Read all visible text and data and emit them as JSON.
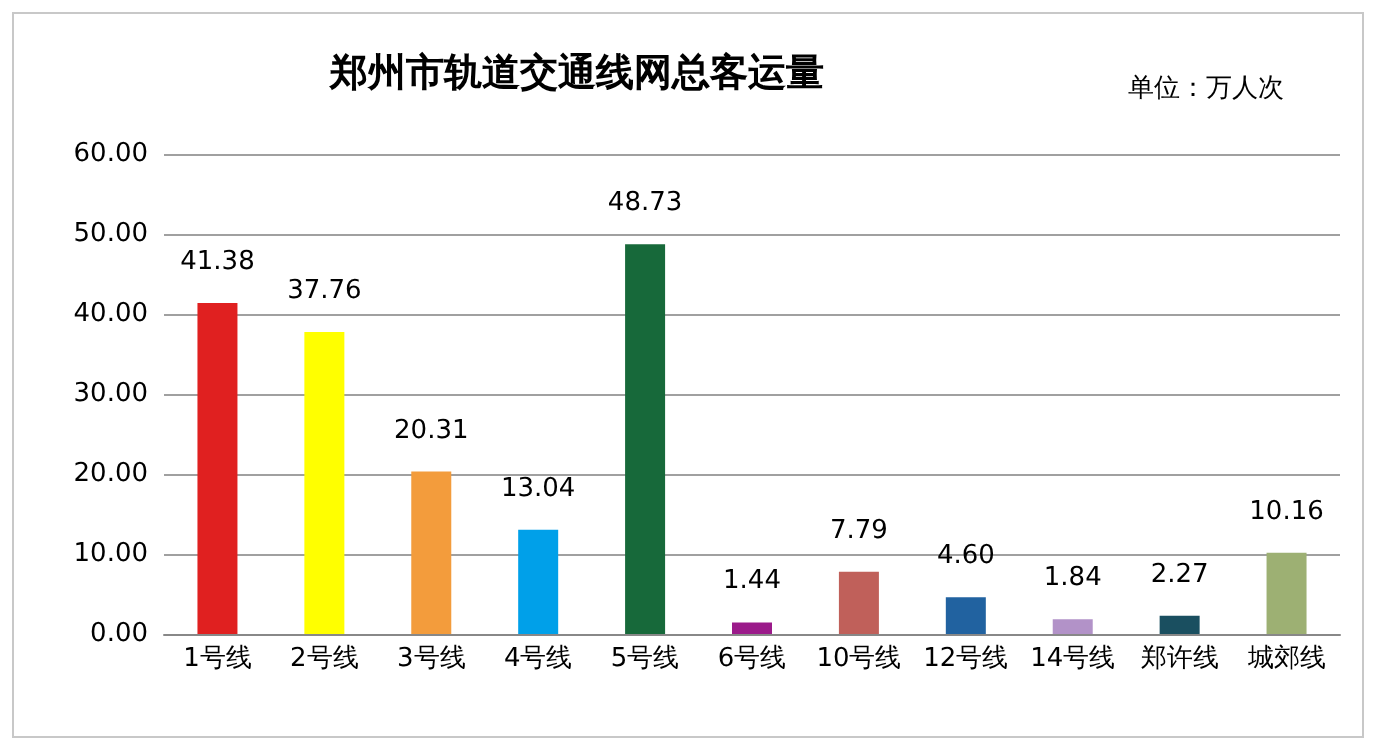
{
  "chart_data": {
    "type": "bar",
    "title": "郑州市轨道交通线网总客运量",
    "annotations": [
      "单位：万人次"
    ],
    "categories": [
      "1号线",
      "2号线",
      "3号线",
      "4号线",
      "5号线",
      "6号线",
      "10号线",
      "12号线",
      "14号线",
      "郑许线",
      "城郊线"
    ],
    "values": [
      41.38,
      37.76,
      20.31,
      13.04,
      48.73,
      1.44,
      7.79,
      4.6,
      1.84,
      2.27,
      10.16
    ],
    "value_labels": [
      "41.38",
      "37.76",
      "20.31",
      "13.04",
      "48.73",
      "1.44",
      "7.79",
      "4.60",
      "1.84",
      "2.27",
      "10.16"
    ],
    "colors": [
      "#e02020",
      "#ffff00",
      "#f39c3c",
      "#00a0e9",
      "#17693a",
      "#9b1a8a",
      "#c0605a",
      "#2162a0",
      "#b292c8",
      "#1a4f60",
      "#9db073"
    ],
    "ylim": [
      0,
      60
    ],
    "yticks": [
      {
        "value": 0,
        "label": "0.00"
      },
      {
        "value": 10,
        "label": "10.00"
      },
      {
        "value": 20,
        "label": "20.00"
      },
      {
        "value": 30,
        "label": "30.00"
      },
      {
        "value": 40,
        "label": "40.00"
      },
      {
        "value": 50,
        "label": "50.00"
      },
      {
        "value": 60,
        "label": "60.00"
      }
    ],
    "grid": "y"
  }
}
